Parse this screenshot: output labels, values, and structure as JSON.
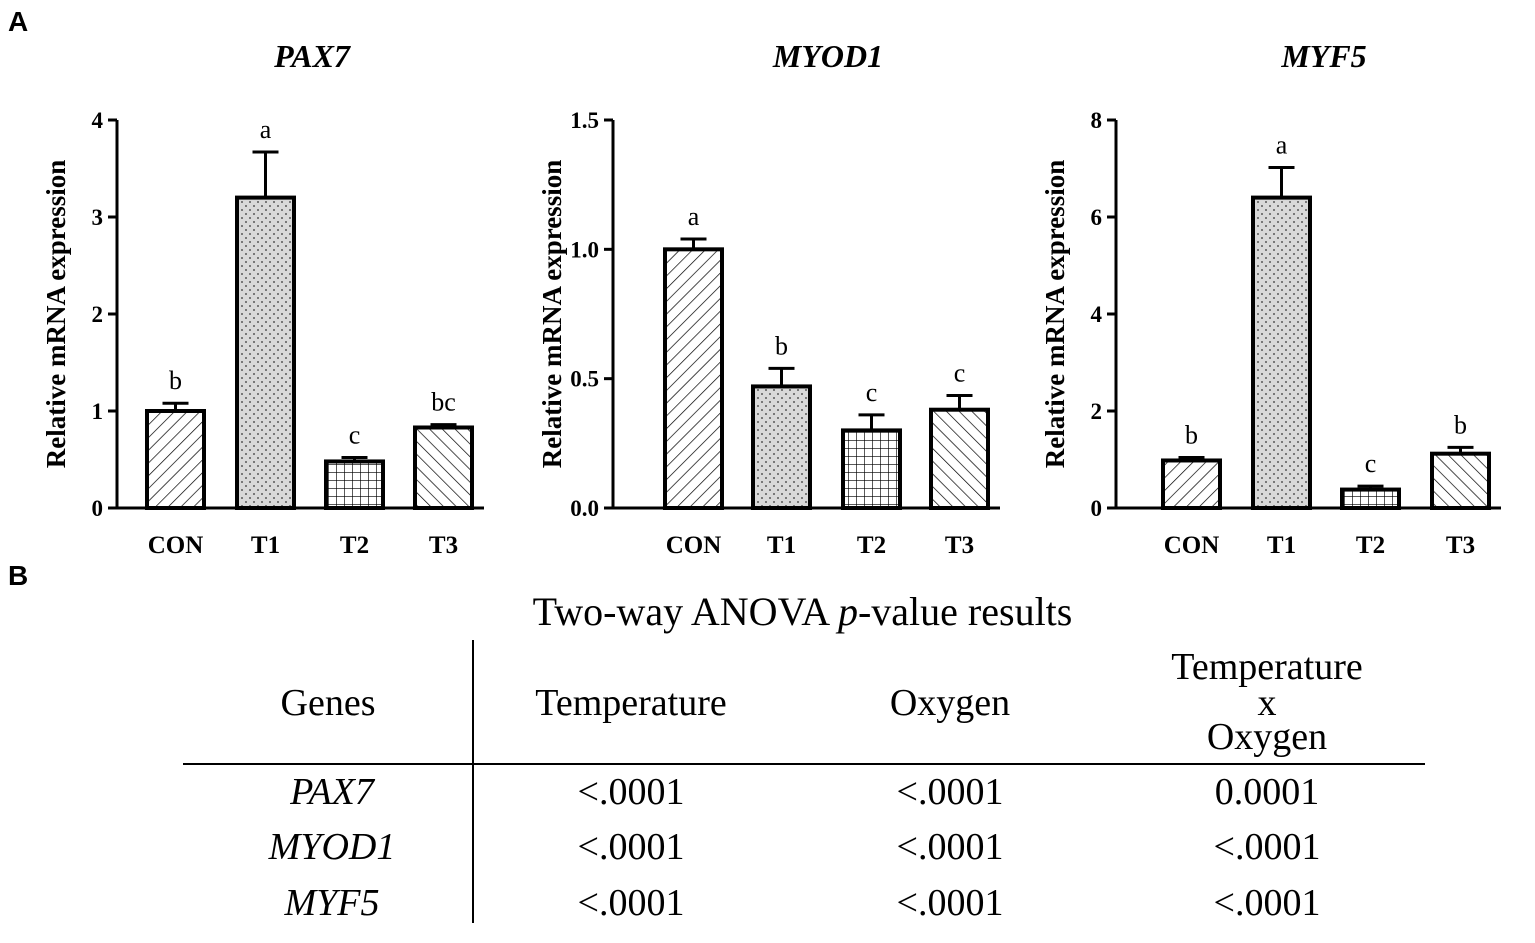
{
  "panel_a_label": "A",
  "panel_b_label": "B",
  "chart_data": [
    {
      "type": "bar",
      "title": "PAX7",
      "ylabel": "Relative mRNA expression",
      "xlabel": "",
      "categories": [
        "CON",
        "T1",
        "T2",
        "T3"
      ],
      "values": [
        1.0,
        3.2,
        0.48,
        0.83
      ],
      "errors": [
        0.08,
        0.47,
        0.04,
        0.03
      ],
      "letters": [
        "b",
        "a",
        "c",
        "bc"
      ],
      "patterns": [
        "diag-back",
        "dots",
        "grid",
        "diag-fwd"
      ],
      "ylim": [
        0,
        4
      ],
      "yticks": [
        0,
        1,
        2,
        3,
        4
      ],
      "ytick_labels": [
        "0",
        "1",
        "2",
        "3",
        "4"
      ]
    },
    {
      "type": "bar",
      "title": "MYOD1",
      "ylabel": "Relative mRNA expression",
      "xlabel": "",
      "categories": [
        "CON",
        "T1",
        "T2",
        "T3"
      ],
      "values": [
        1.0,
        0.47,
        0.3,
        0.38
      ],
      "errors": [
        0.04,
        0.07,
        0.06,
        0.055
      ],
      "letters": [
        "a",
        "b",
        "c",
        "c"
      ],
      "patterns": [
        "diag-back",
        "dots",
        "grid",
        "diag-fwd"
      ],
      "ylim": [
        0,
        1.5
      ],
      "yticks": [
        0,
        0.5,
        1.0,
        1.5
      ],
      "ytick_labels": [
        "0.0",
        "0.5",
        "1.0",
        "1.5"
      ]
    },
    {
      "type": "bar",
      "title": "MYF5",
      "ylabel": "Relative mRNA expression",
      "xlabel": "",
      "categories": [
        "CON",
        "T1",
        "T2",
        "T3"
      ],
      "values": [
        0.98,
        6.4,
        0.38,
        1.12
      ],
      "errors": [
        0.06,
        0.62,
        0.07,
        0.13
      ],
      "letters": [
        "b",
        "a",
        "c",
        "b"
      ],
      "patterns": [
        "diag-back",
        "dots",
        "grid",
        "diag-fwd"
      ],
      "ylim": [
        0,
        8
      ],
      "yticks": [
        0,
        2,
        4,
        6,
        8
      ],
      "ytick_labels": [
        "0",
        "2",
        "4",
        "6",
        "8"
      ]
    }
  ],
  "table": {
    "title_before": "Two-way ANOVA ",
    "title_p": "p",
    "title_after": "-value results",
    "headers": {
      "genes": "Genes",
      "temperature": "Temperature",
      "oxygen": "Oxygen",
      "interaction_line1": "Temperature",
      "interaction_line2": "x",
      "interaction_line3": "Oxygen"
    },
    "rows": [
      {
        "gene": "PAX7",
        "temperature": "<.0001",
        "oxygen": "<.0001",
        "interaction": "0.0001"
      },
      {
        "gene": "MYOD1",
        "temperature": "<.0001",
        "oxygen": "<.0001",
        "interaction": "<.0001"
      },
      {
        "gene": "MYF5",
        "temperature": "<.0001",
        "oxygen": "<.0001",
        "interaction": "<.0001"
      }
    ]
  }
}
